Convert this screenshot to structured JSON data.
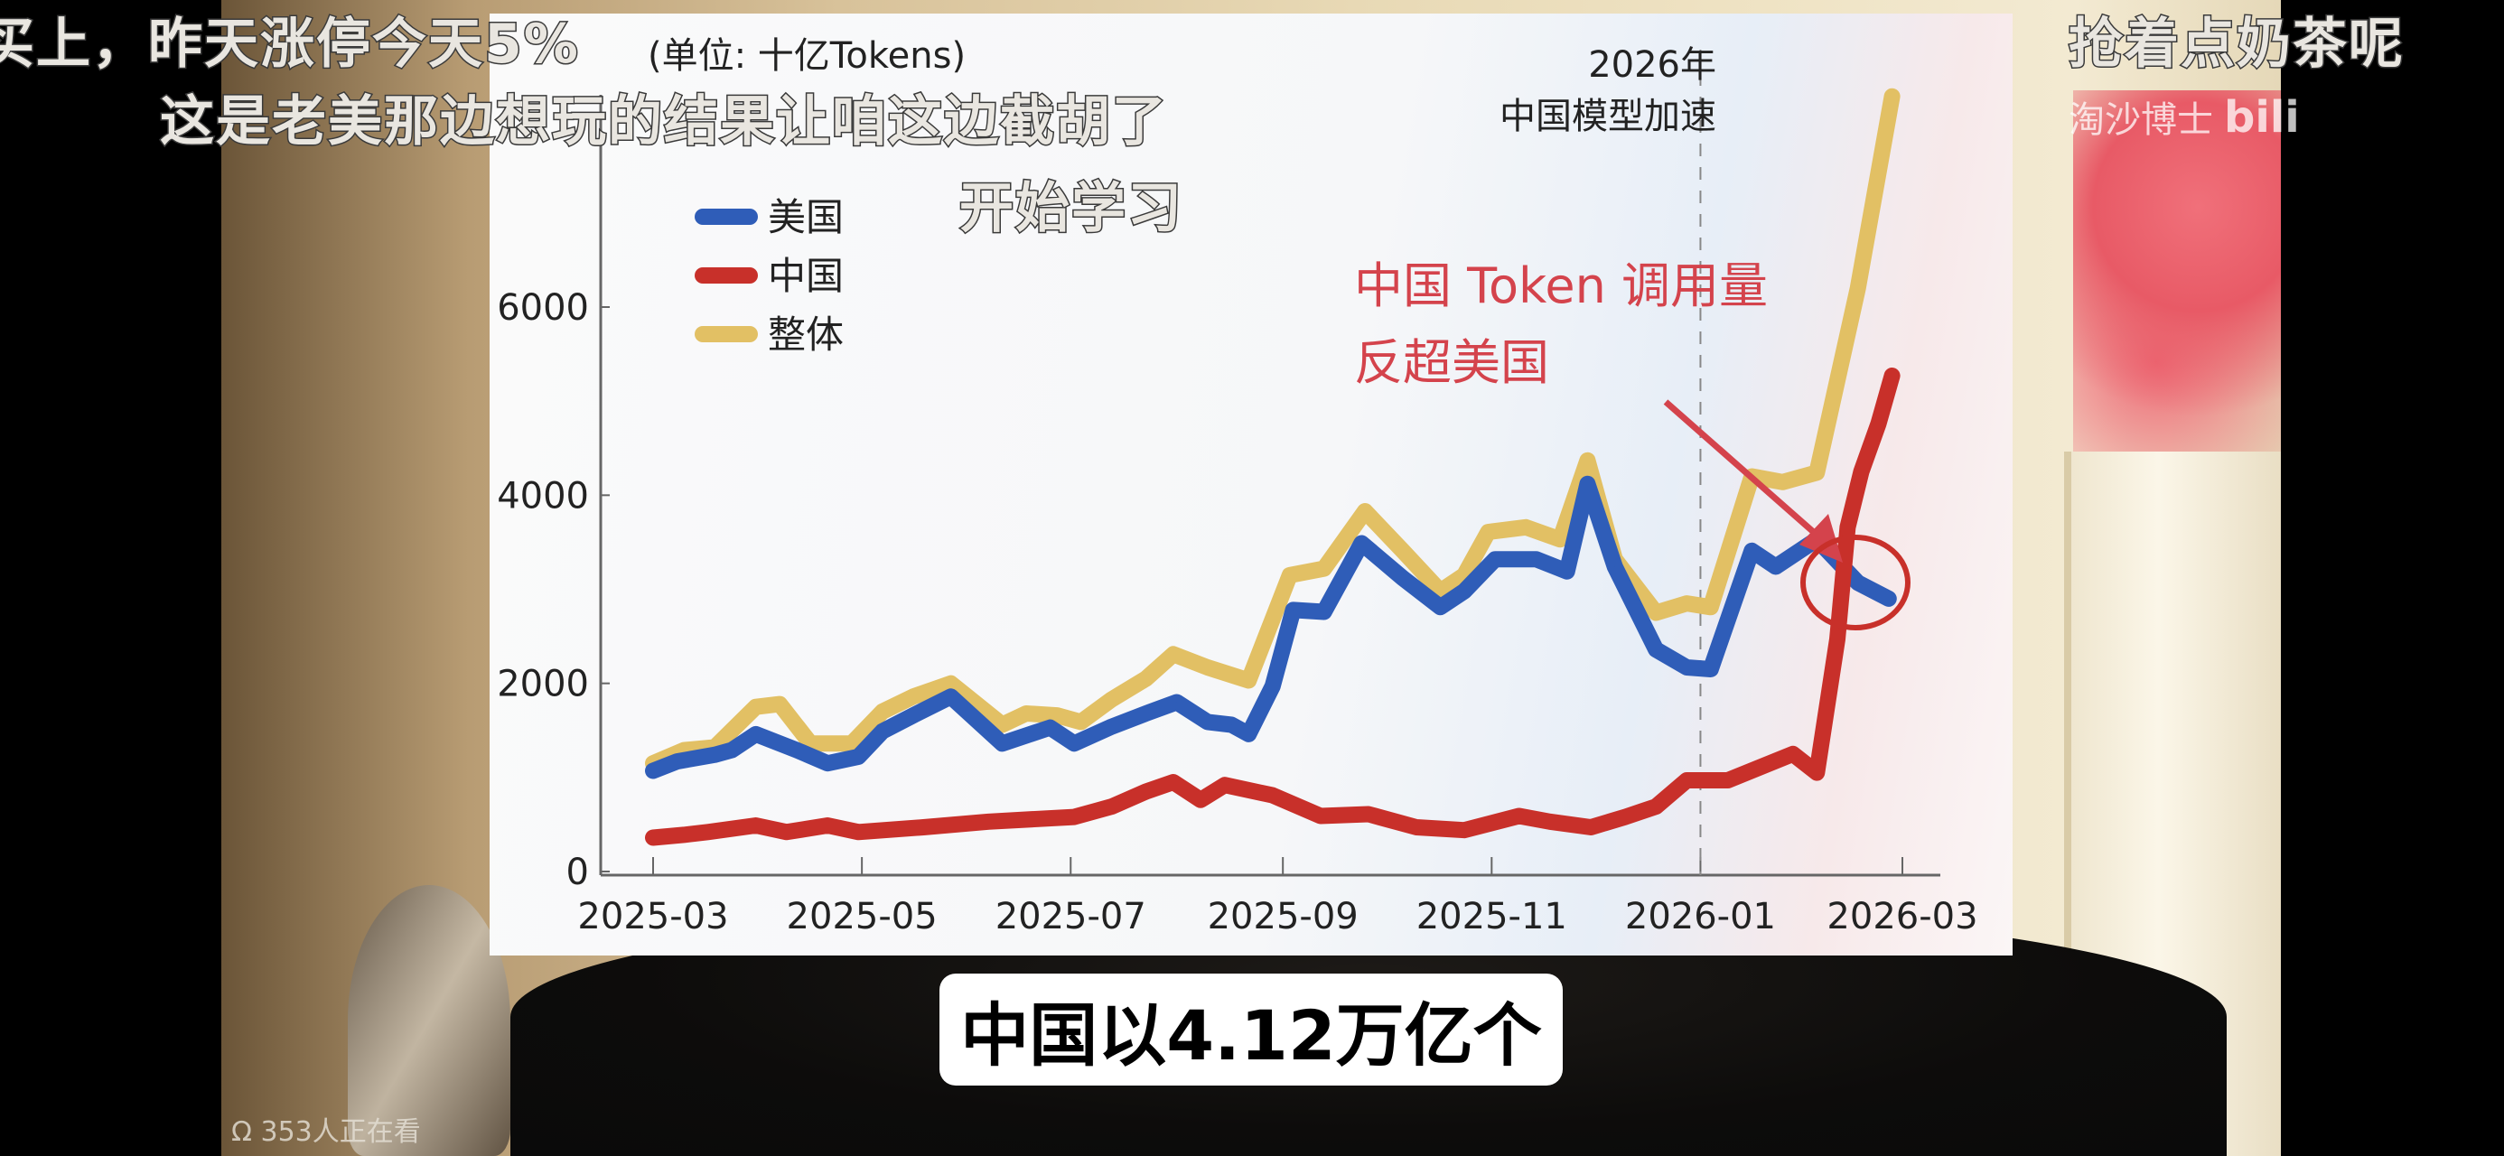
{
  "subtitles": {
    "line1_left": "买上，昨天涨停今天5%",
    "line1_right": "抢着点奶茶呢",
    "line2": "这是老美那边想玩的结果让咱这边截胡了",
    "line3": "开始学习"
  },
  "caption": "中国以4.12万亿个",
  "watermark": {
    "author": "淘沙博士",
    "logo": "bilibili"
  },
  "viewers": "353人正在看",
  "colors": {
    "us": "#2f5db8",
    "china": "#c8302a",
    "total": "#e2c064",
    "annotation": "#d4434c"
  },
  "chart_data": {
    "type": "line",
    "unit_label": "(单位: 十亿Tokens)",
    "xlim": [
      "2025-03-01",
      "2026-03-01"
    ],
    "ylim": [
      0,
      8600
    ],
    "x_ticks": [
      "2025-03",
      "2025-05",
      "2025-07",
      "2025-09",
      "2025-11",
      "2026-01",
      "2026-03"
    ],
    "y_ticks": [
      0,
      2000,
      4000,
      6000
    ],
    "grid": false,
    "legend_position": "top-left",
    "annotations": {
      "period_line_date": "2026-01-01",
      "period_label_1": "2026年",
      "period_label_2": "中国模型加速",
      "callout_1": "中国 Token 调用量",
      "callout_2": "反超美国"
    },
    "series": [
      {
        "name": "美国",
        "color": "#2f5db8",
        "points": [
          [
            "2025-03-01",
            1070
          ],
          [
            "2025-03-08",
            1170
          ],
          [
            "2025-03-19",
            1240
          ],
          [
            "2025-03-24",
            1290
          ],
          [
            "2025-03-31",
            1460
          ],
          [
            "2025-04-12",
            1290
          ],
          [
            "2025-04-21",
            1150
          ],
          [
            "2025-04-30",
            1220
          ],
          [
            "2025-05-07",
            1490
          ],
          [
            "2025-05-16",
            1660
          ],
          [
            "2025-05-27",
            1860
          ],
          [
            "2025-06-11",
            1360
          ],
          [
            "2025-06-25",
            1530
          ],
          [
            "2025-07-02",
            1360
          ],
          [
            "2025-07-13",
            1540
          ],
          [
            "2025-07-23",
            1680
          ],
          [
            "2025-08-01",
            1800
          ],
          [
            "2025-08-10",
            1590
          ],
          [
            "2025-08-17",
            1560
          ],
          [
            "2025-08-22",
            1460
          ],
          [
            "2025-08-29",
            1970
          ],
          [
            "2025-09-04",
            2780
          ],
          [
            "2025-09-13",
            2760
          ],
          [
            "2025-09-24",
            3490
          ],
          [
            "2025-10-06",
            3120
          ],
          [
            "2025-10-17",
            2810
          ],
          [
            "2025-10-24",
            2980
          ],
          [
            "2025-11-02",
            3320
          ],
          [
            "2025-11-14",
            3320
          ],
          [
            "2025-11-23",
            3190
          ],
          [
            "2025-11-29",
            4120
          ],
          [
            "2025-12-07",
            3240
          ],
          [
            "2025-12-19",
            2360
          ],
          [
            "2025-12-28",
            2170
          ],
          [
            "2026-01-04",
            2150
          ],
          [
            "2026-01-16",
            3410
          ],
          [
            "2026-01-23",
            3240
          ],
          [
            "2026-02-04",
            3530
          ],
          [
            "2026-02-16",
            3070
          ],
          [
            "2026-02-25",
            2900
          ]
        ]
      },
      {
        "name": "中国",
        "color": "#c8302a",
        "points": [
          [
            "2025-03-01",
            360
          ],
          [
            "2025-03-10",
            390
          ],
          [
            "2025-03-17",
            420
          ],
          [
            "2025-03-31",
            490
          ],
          [
            "2025-04-09",
            420
          ],
          [
            "2025-04-21",
            490
          ],
          [
            "2025-04-30",
            420
          ],
          [
            "2025-05-19",
            470
          ],
          [
            "2025-06-07",
            530
          ],
          [
            "2025-07-02",
            580
          ],
          [
            "2025-07-13",
            690
          ],
          [
            "2025-07-23",
            850
          ],
          [
            "2025-07-31",
            950
          ],
          [
            "2025-08-08",
            760
          ],
          [
            "2025-08-15",
            920
          ],
          [
            "2025-08-29",
            810
          ],
          [
            "2025-09-12",
            590
          ],
          [
            "2025-09-26",
            610
          ],
          [
            "2025-10-10",
            470
          ],
          [
            "2025-10-24",
            440
          ],
          [
            "2025-11-09",
            590
          ],
          [
            "2025-11-18",
            530
          ],
          [
            "2025-11-30",
            470
          ],
          [
            "2025-12-10",
            580
          ],
          [
            "2025-12-19",
            690
          ],
          [
            "2025-12-28",
            970
          ],
          [
            "2026-01-09",
            970
          ],
          [
            "2026-01-28",
            1250
          ],
          [
            "2026-02-04",
            1050
          ],
          [
            "2026-02-10",
            2470
          ],
          [
            "2026-02-13",
            3660
          ],
          [
            "2026-02-17",
            4250
          ],
          [
            "2026-02-22",
            4760
          ],
          [
            "2026-02-26",
            5270
          ]
        ]
      },
      {
        "name": "整体",
        "color": "#e2c064",
        "points": [
          [
            "2025-03-01",
            1150
          ],
          [
            "2025-03-10",
            1290
          ],
          [
            "2025-03-19",
            1320
          ],
          [
            "2025-03-31",
            1750
          ],
          [
            "2025-04-07",
            1780
          ],
          [
            "2025-04-16",
            1360
          ],
          [
            "2025-04-28",
            1360
          ],
          [
            "2025-05-07",
            1700
          ],
          [
            "2025-05-16",
            1860
          ],
          [
            "2025-05-27",
            2000
          ],
          [
            "2025-06-11",
            1560
          ],
          [
            "2025-06-18",
            1680
          ],
          [
            "2025-06-27",
            1660
          ],
          [
            "2025-07-04",
            1590
          ],
          [
            "2025-07-13",
            1830
          ],
          [
            "2025-07-23",
            2050
          ],
          [
            "2025-07-31",
            2310
          ],
          [
            "2025-08-10",
            2170
          ],
          [
            "2025-08-22",
            2030
          ],
          [
            "2025-09-03",
            3150
          ],
          [
            "2025-09-13",
            3220
          ],
          [
            "2025-09-25",
            3830
          ],
          [
            "2025-10-06",
            3410
          ],
          [
            "2025-10-17",
            2980
          ],
          [
            "2025-10-24",
            3150
          ],
          [
            "2025-10-31",
            3610
          ],
          [
            "2025-11-11",
            3660
          ],
          [
            "2025-11-21",
            3530
          ],
          [
            "2025-11-29",
            4370
          ],
          [
            "2025-12-07",
            3320
          ],
          [
            "2025-12-19",
            2750
          ],
          [
            "2025-12-28",
            2850
          ],
          [
            "2026-01-04",
            2810
          ],
          [
            "2026-01-16",
            4200
          ],
          [
            "2026-01-25",
            4140
          ],
          [
            "2026-02-04",
            4240
          ],
          [
            "2026-02-16",
            6200
          ],
          [
            "2026-02-26",
            8240
          ]
        ]
      }
    ]
  }
}
